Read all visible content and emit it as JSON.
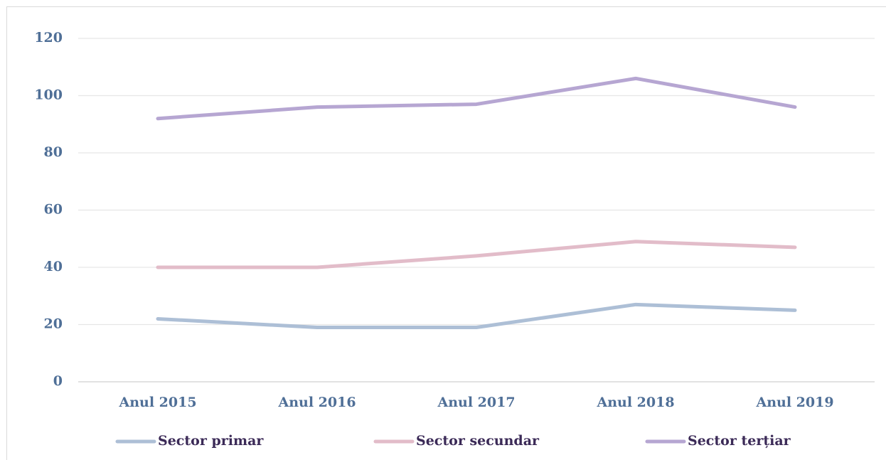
{
  "chart_data": {
    "type": "line",
    "categories": [
      "Anul 2015",
      "Anul 2016",
      "Anul 2017",
      "Anul 2018",
      "Anul 2019"
    ],
    "series": [
      {
        "name": "Sector primar",
        "color": "#adbfd6",
        "values": [
          22,
          19,
          19,
          27,
          25
        ]
      },
      {
        "name": "Sector secundar",
        "color": "#e2bcc9",
        "values": [
          40,
          40,
          44,
          49,
          47
        ]
      },
      {
        "name": "Sector terțiar",
        "color": "#b6a6d2",
        "values": [
          92,
          96,
          97,
          106,
          96
        ]
      }
    ],
    "ylim": [
      0,
      120
    ],
    "yticks": [
      0,
      20,
      40,
      60,
      80,
      100,
      120
    ],
    "grid": true,
    "legend": "bottom"
  }
}
